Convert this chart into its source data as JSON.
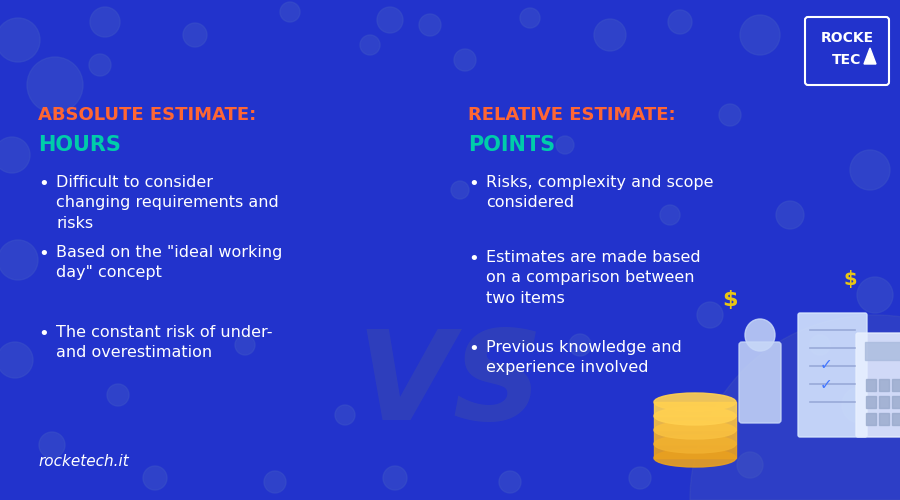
{
  "bg_color": "#2233CC",
  "dot_color": "#3344DD",
  "title_left_line1": "ABSOLUTE ESTIMATE:",
  "title_left_line2": "HOURS",
  "title_right_line1": "RELATIVE ESTIMATE:",
  "title_right_line2": "POINTS",
  "title_color": "#FF6633",
  "subtitle_color": "#00CCAA",
  "bullet_text_color": "#FFFFFF",
  "left_bullets": [
    "Difficult to consider\nchanging requirements and\nrisks",
    "Based on the \"ideal working\nday\" concept",
    "The constant risk of under-\nand overestimation"
  ],
  "right_bullets": [
    "Risks, complexity and scope\nconsidered",
    "Estimates are made based\non a comparison between\ntwo items",
    "Previous knowledge and\nexperience involved"
  ],
  "vs_text": "VS",
  "logo_text": "ROCKE\nTEC",
  "logo_color": "#FFFFFF",
  "footer_text": "rocketech.it",
  "footer_color": "#FFFFFF",
  "bullet_font_size": 11.5,
  "title_font_size": 13,
  "subtitle_font_size": 15
}
